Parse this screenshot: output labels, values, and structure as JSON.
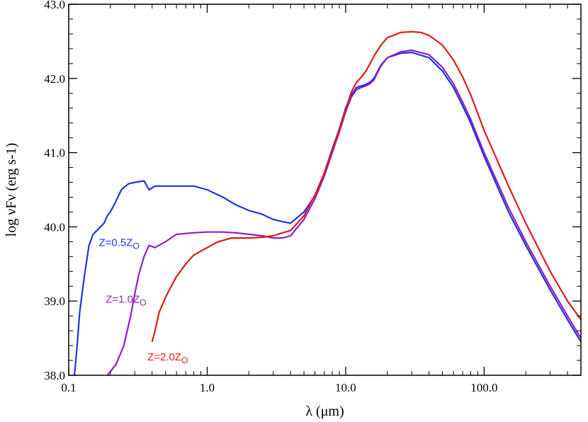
{
  "chart_data": {
    "type": "line",
    "title": "",
    "xlabel": "λ (μm)",
    "ylabel": "log νFν (erg s-1)",
    "xscale": "log",
    "xlim": [
      0.1,
      500
    ],
    "ylim": [
      38.0,
      43.0
    ],
    "x_ticks": [
      {
        "value": 0.1,
        "label": "0.1"
      },
      {
        "value": 1,
        "label": "1.0"
      },
      {
        "value": 10,
        "label": "10.0"
      },
      {
        "value": 100,
        "label": "100.0"
      }
    ],
    "y_ticks": [
      {
        "value": 38,
        "label": "38.0"
      },
      {
        "value": 39,
        "label": "39.0"
      },
      {
        "value": 40,
        "label": "40.0"
      },
      {
        "value": 41,
        "label": "41.0"
      },
      {
        "value": 42,
        "label": "42.0"
      },
      {
        "value": 43,
        "label": "43.0"
      }
    ],
    "grid": false,
    "series": [
      {
        "name": "Z=0.5ZO",
        "label": "Z=0.5Z",
        "label_sub": "O",
        "color": "#2233dd",
        "label_anchor": {
          "x": 0.165,
          "y": 39.74
        },
        "x": [
          0.11,
          0.115,
          0.12,
          0.13,
          0.14,
          0.15,
          0.16,
          0.17,
          0.18,
          0.19,
          0.2,
          0.22,
          0.24,
          0.27,
          0.3,
          0.35,
          0.38,
          0.42,
          0.5,
          0.6,
          0.8,
          1.0,
          1.3,
          1.6,
          2.0,
          2.5,
          3.0,
          3.5,
          4.0,
          5.0,
          6.0,
          7.0,
          8.0,
          9.0,
          10,
          11,
          12,
          13,
          14,
          15,
          16,
          18,
          20,
          25,
          30,
          40,
          50,
          60,
          70,
          80,
          100,
          150,
          200,
          300,
          400,
          500
        ],
        "y": [
          38.0,
          38.4,
          38.85,
          39.35,
          39.75,
          39.9,
          39.95,
          40.0,
          40.05,
          40.15,
          40.2,
          40.35,
          40.5,
          40.58,
          40.6,
          40.62,
          40.5,
          40.55,
          40.55,
          40.55,
          40.55,
          40.5,
          40.4,
          40.3,
          40.22,
          40.17,
          40.1,
          40.07,
          40.05,
          40.2,
          40.42,
          40.72,
          41.05,
          41.32,
          41.6,
          41.78,
          41.88,
          41.9,
          41.92,
          41.95,
          42.0,
          42.18,
          42.28,
          42.34,
          42.35,
          42.28,
          42.1,
          41.88,
          41.63,
          41.4,
          40.95,
          40.2,
          39.75,
          39.15,
          38.75,
          38.45
        ]
      },
      {
        "name": "Z=1.0ZO",
        "label": "Z=1.0Z",
        "label_sub": "O",
        "color": "#8f1fc6",
        "label_anchor": {
          "x": 0.185,
          "y": 38.98
        },
        "x": [
          0.19,
          0.2,
          0.22,
          0.25,
          0.28,
          0.3,
          0.32,
          0.35,
          0.38,
          0.42,
          0.5,
          0.6,
          0.8,
          1.0,
          1.3,
          1.6,
          2.0,
          2.5,
          3.0,
          3.5,
          4.0,
          5.0,
          6.0,
          7.0,
          8.0,
          9.0,
          10,
          11,
          12,
          13,
          14,
          15,
          16,
          18,
          20,
          25,
          30,
          40,
          50,
          60,
          70,
          80,
          100,
          150,
          200,
          300,
          400,
          500
        ],
        "y": [
          38.0,
          38.05,
          38.15,
          38.4,
          38.8,
          39.1,
          39.35,
          39.6,
          39.75,
          39.72,
          39.8,
          39.9,
          39.92,
          39.93,
          39.93,
          39.92,
          39.9,
          39.88,
          39.85,
          39.85,
          39.88,
          40.1,
          40.38,
          40.68,
          41.0,
          41.28,
          41.55,
          41.75,
          41.85,
          41.88,
          41.9,
          41.93,
          41.98,
          42.17,
          42.28,
          42.36,
          42.38,
          42.32,
          42.15,
          41.93,
          41.68,
          41.45,
          41.0,
          40.26,
          39.8,
          39.2,
          38.8,
          38.5
        ]
      },
      {
        "name": "Z=2.0ZO",
        "label": "Z=2.0Z",
        "label_sub": "O",
        "color": "#e01a1a",
        "label_anchor": {
          "x": 0.37,
          "y": 38.2
        },
        "x": [
          0.4,
          0.42,
          0.45,
          0.5,
          0.55,
          0.6,
          0.7,
          0.8,
          1.0,
          1.2,
          1.5,
          2.0,
          2.5,
          3.0,
          3.5,
          4.0,
          5.0,
          6.0,
          7.0,
          8.0,
          9.0,
          10,
          11,
          12,
          13,
          14,
          15,
          16,
          18,
          20,
          25,
          30,
          35,
          40,
          50,
          60,
          70,
          80,
          100,
          150,
          200,
          300,
          400,
          500
        ],
        "y": [
          38.45,
          38.6,
          38.85,
          39.05,
          39.2,
          39.33,
          39.5,
          39.62,
          39.72,
          39.8,
          39.85,
          39.85,
          39.86,
          39.88,
          39.92,
          39.95,
          40.15,
          40.43,
          40.72,
          41.02,
          41.3,
          41.58,
          41.82,
          41.95,
          42.02,
          42.1,
          42.2,
          42.3,
          42.45,
          42.55,
          42.62,
          42.63,
          42.62,
          42.58,
          42.45,
          42.25,
          42.02,
          41.78,
          41.3,
          40.55,
          40.05,
          39.4,
          39.0,
          38.75
        ]
      }
    ]
  }
}
